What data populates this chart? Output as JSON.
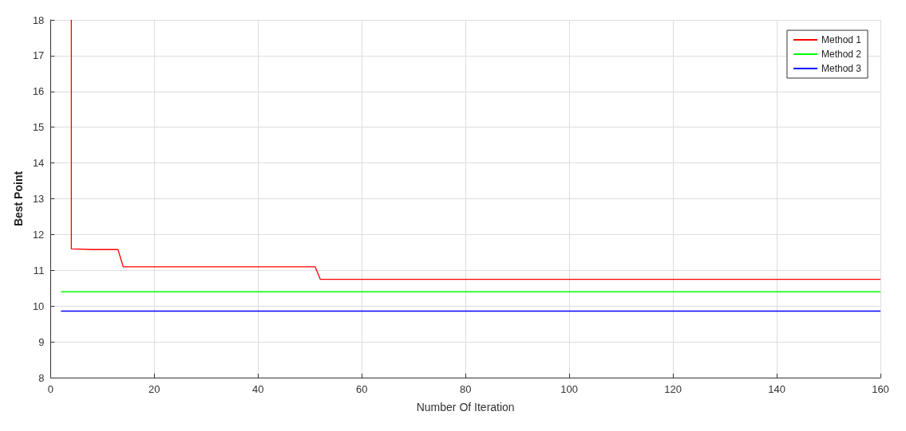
{
  "chart_data": {
    "type": "line",
    "xlabel": "Number Of Iteration",
    "ylabel": "Best Point",
    "xlim": [
      0,
      160
    ],
    "xticks": [
      0,
      20,
      40,
      60,
      80,
      100,
      120,
      140,
      160
    ],
    "ylim": [
      8,
      18
    ],
    "yticks": [
      8,
      9,
      10,
      11,
      12,
      13,
      14,
      15,
      16,
      17,
      18
    ],
    "grid": true,
    "legend": "top right",
    "marker": "none",
    "line_style": "solid",
    "series": [
      {
        "name": "Method 1",
        "color": "#ff0000",
        "x": [
          4,
          4,
          8,
          13,
          14,
          51,
          52,
          160
        ],
        "values": [
          18,
          11.6,
          11.58,
          11.58,
          11.1,
          11.1,
          10.75,
          10.75
        ]
      },
      {
        "name": "Method 2",
        "color": "#00ff00",
        "x": [
          2,
          160
        ],
        "values": [
          10.4,
          10.4
        ]
      },
      {
        "name": "Method 3",
        "color": "#0000ff",
        "x": [
          2,
          160
        ],
        "values": [
          9.86,
          9.86
        ]
      }
    ]
  }
}
